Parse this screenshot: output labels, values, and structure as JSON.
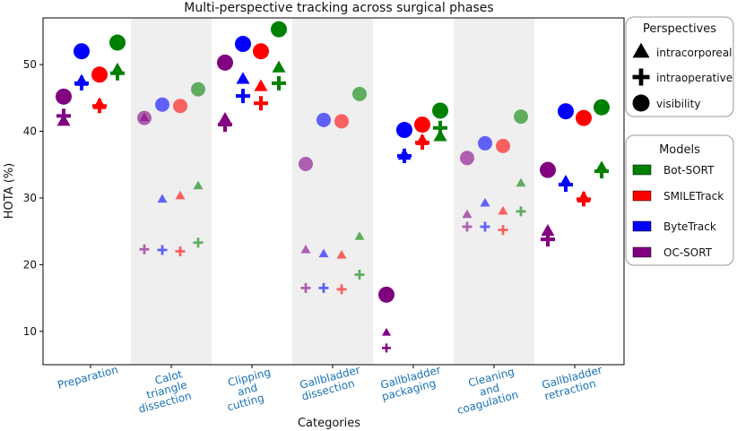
{
  "chart_data": {
    "type": "scatter",
    "title": "Multi-perspective tracking across surgical phases",
    "xlabel": "Categories",
    "ylabel": "HOTA (%)",
    "ylim": [
      5,
      57
    ],
    "yticks": [
      10,
      20,
      30,
      40,
      50
    ],
    "categories": [
      [
        "Preparation"
      ],
      [
        "Calot",
        "triangle",
        "dissection"
      ],
      [
        "Clipping",
        "and",
        "cutting"
      ],
      [
        "Gallbladder",
        "dissection"
      ],
      [
        "Gallbladder",
        "packaging"
      ],
      [
        "Cleaning",
        "and",
        "coagulation"
      ],
      [
        "Gallbladder",
        "retraction"
      ]
    ],
    "shaded_categories": [
      1,
      3,
      5
    ],
    "models": [
      {
        "name": "Bot-SORT",
        "color": "#008000"
      },
      {
        "name": "SMILETrack",
        "color": "#ff0000"
      },
      {
        "name": "ByteTrack",
        "color": "#0000ff"
      },
      {
        "name": "OC-SORT",
        "color": "#800080"
      }
    ],
    "perspectives": [
      {
        "name": "intracorporeal",
        "marker": "triangle"
      },
      {
        "name": "intraoperative",
        "marker": "plus"
      },
      {
        "name": "visibility",
        "marker": "circle"
      }
    ],
    "legend_titles": {
      "perspectives": "Perspectives",
      "models": "Models"
    },
    "legend_placement": "outside-right",
    "series": [
      {
        "model": "OC-SORT",
        "perspective": "visibility",
        "values": [
          45.2,
          42.0,
          50.3,
          35.1,
          15.5,
          36.0,
          34.2
        ]
      },
      {
        "model": "OC-SORT",
        "perspective": "intracorporeal",
        "values": [
          41.5,
          42.0,
          41.8,
          22.2,
          9.8,
          27.5,
          25.0
        ]
      },
      {
        "model": "OC-SORT",
        "perspective": "intraoperative",
        "values": [
          42.3,
          22.3,
          41.0,
          16.5,
          7.5,
          25.7,
          23.8
        ]
      },
      {
        "model": "ByteTrack",
        "perspective": "visibility",
        "values": [
          52.0,
          44.0,
          53.1,
          41.7,
          40.2,
          38.2,
          43.0
        ]
      },
      {
        "model": "ByteTrack",
        "perspective": "intracorporeal",
        "values": [
          47.5,
          29.8,
          47.8,
          21.6,
          36.4,
          29.2,
          32.4
        ]
      },
      {
        "model": "ByteTrack",
        "perspective": "intraoperative",
        "values": [
          47.2,
          22.2,
          45.3,
          16.5,
          36.3,
          25.7,
          32.0
        ]
      },
      {
        "model": "SMILETrack",
        "perspective": "visibility",
        "values": [
          48.5,
          43.8,
          52.0,
          41.5,
          41.0,
          37.8,
          42.0
        ]
      },
      {
        "model": "SMILETrack",
        "perspective": "intracorporeal",
        "values": [
          44.0,
          30.3,
          46.7,
          21.4,
          38.6,
          28.0,
          30.0
        ]
      },
      {
        "model": "SMILETrack",
        "perspective": "intraoperative",
        "values": [
          43.8,
          22.0,
          44.2,
          16.3,
          38.3,
          25.2,
          29.8
        ]
      },
      {
        "model": "Bot-SORT",
        "perspective": "visibility",
        "values": [
          53.3,
          46.3,
          55.3,
          45.6,
          43.1,
          42.2,
          43.6
        ]
      },
      {
        "model": "Bot-SORT",
        "perspective": "intracorporeal",
        "values": [
          49.2,
          31.8,
          49.5,
          24.2,
          39.2,
          32.2,
          34.5
        ]
      },
      {
        "model": "Bot-SORT",
        "perspective": "intraoperative",
        "values": [
          48.7,
          23.3,
          47.2,
          18.5,
          40.5,
          28.0,
          34.0
        ]
      }
    ]
  }
}
